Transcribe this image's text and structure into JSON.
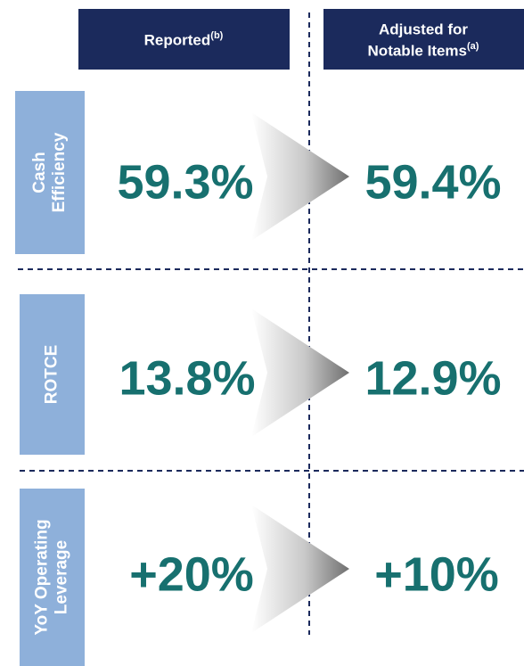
{
  "headers": [
    {
      "lines": [
        "Reported"
      ],
      "sup": "(b)"
    },
    {
      "lines": [
        "Adjusted for",
        "Notable Items"
      ],
      "sup": "(a)"
    }
  ],
  "rows": [
    {
      "label": [
        "Cash",
        "Efficiency"
      ],
      "reported": "59.3%",
      "adjusted": "59.4%"
    },
    {
      "label": [
        "ROTCE"
      ],
      "reported": "13.8%",
      "adjusted": "12.9%"
    },
    {
      "label": [
        "YoY Operating",
        "Leverage"
      ],
      "reported": "+20%",
      "adjusted": "+10%"
    }
  ]
}
